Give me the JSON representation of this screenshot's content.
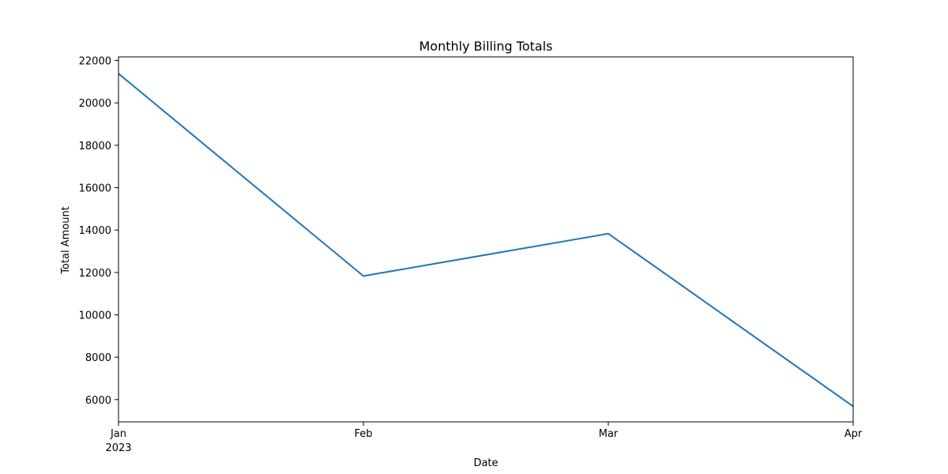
{
  "chart_data": {
    "type": "line",
    "title": "Monthly Billing Totals",
    "xlabel": "Date",
    "ylabel": "Total Amount",
    "x": [
      "2023-01",
      "2023-02",
      "2023-03",
      "2023-04"
    ],
    "x_tick_labels": [
      "Jan",
      "Feb",
      "Mar",
      "Apr"
    ],
    "x_year_label": "2023",
    "series": [
      {
        "values": [
          21380,
          11830,
          13830,
          5680
        ],
        "color": "#1f77b4"
      }
    ],
    "ylim": [
      4950,
      22170
    ],
    "y_ticks": [
      6000,
      8000,
      10000,
      12000,
      14000,
      16000,
      18000,
      20000,
      22000
    ],
    "grid": false,
    "legend": "none"
  }
}
